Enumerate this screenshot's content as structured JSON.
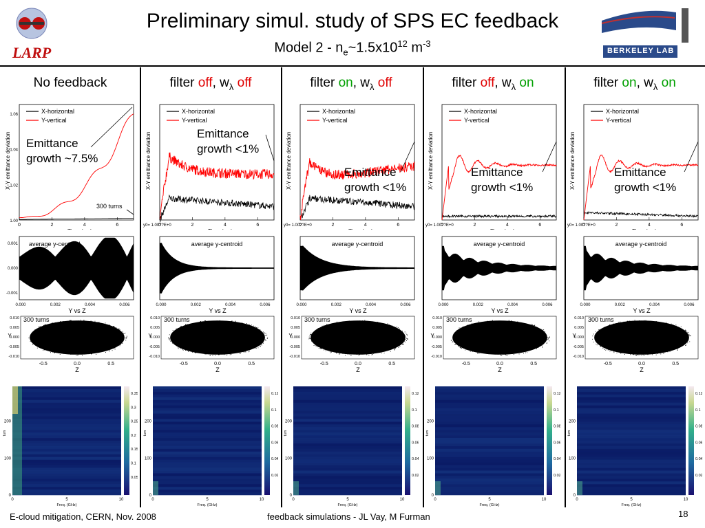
{
  "slide": {
    "title": "Preliminary simul. study of SPS EC feedback",
    "subtitle_main": "Model 2 - n",
    "subtitle_sub": "e",
    "subtitle_mid": "~1.5x10",
    "subtitle_sup": "12",
    "subtitle_unit": " m",
    "subtitle_unit_sup": "-3",
    "logo_left_text": "LARP",
    "logo_right_text": "BERKELEY LAB",
    "footer_left": "E-cloud mitigation, CERN, Nov. 2008",
    "footer_center": "feedback simulations - JL Vay, M Furman",
    "page_number": "18"
  },
  "columns": [
    {
      "head_parts": [
        {
          "t": "No feedback",
          "c": ""
        }
      ],
      "annotation_1": "Emittance",
      "annotation_2": "growth ~7.5%",
      "turns_label": "300 turns",
      "scatter_label": "300 turns"
    },
    {
      "head_parts": [
        {
          "t": "filter ",
          "c": ""
        },
        {
          "t": "off",
          "c": "off"
        },
        {
          "t": ", w",
          "c": ""
        },
        {
          "t": "λ",
          "c": "sub"
        },
        {
          "t": " off",
          "c": "off"
        }
      ],
      "annotation_1": "Emittance",
      "annotation_2": "growth <1%",
      "scatter_label": "300 turns"
    },
    {
      "head_parts": [
        {
          "t": "filter ",
          "c": ""
        },
        {
          "t": "on",
          "c": "on"
        },
        {
          "t": ", w",
          "c": ""
        },
        {
          "t": "λ",
          "c": "sub"
        },
        {
          "t": " off",
          "c": "off"
        }
      ],
      "annotation_1": "Emittance",
      "annotation_2": "growth <1%",
      "scatter_label": "300 turns"
    },
    {
      "head_parts": [
        {
          "t": "filter ",
          "c": ""
        },
        {
          "t": "off",
          "c": "off"
        },
        {
          "t": ", w",
          "c": ""
        },
        {
          "t": "λ",
          "c": "sub"
        },
        {
          "t": " on",
          "c": "on"
        }
      ],
      "annotation_1": "Emittance",
      "annotation_2": "growth <1%",
      "scatter_label": "300 turns"
    },
    {
      "head_parts": [
        {
          "t": "filter ",
          "c": ""
        },
        {
          "t": "on",
          "c": "on"
        },
        {
          "t": ", w",
          "c": ""
        },
        {
          "t": "λ",
          "c": "sub"
        },
        {
          "t": " on",
          "c": "on"
        }
      ],
      "annotation_1": "Emittance",
      "annotation_2": "growth <1%",
      "scatter_label": "300 turns"
    }
  ],
  "colors": {
    "x_horizontal": "#000000",
    "y_vertical": "#ff0000",
    "off": "#e00000",
    "on": "#00a000"
  },
  "chart_data": [
    {
      "type": "line",
      "panel": "emittance",
      "xlabel": "Time (ms)",
      "ylabel": "X-Y emittance deviation",
      "legend": [
        "X-horizontal",
        "Y-vertical"
      ],
      "x_ticks": [
        "0",
        "2",
        "4",
        "6"
      ],
      "y_ticks": [
        "1.00",
        "1.02",
        "1.04",
        "1.06"
      ],
      "xlim": [
        0,
        7
      ],
      "ylim": [
        1.0,
        1.065
      ]
    },
    {
      "type": "line",
      "panel": "centroid",
      "label": "average y-centroid",
      "x_ticks": [
        "0.000",
        "0.002",
        "0.004",
        "0.006"
      ],
      "y_ticks": [
        "-0.001",
        "0.000",
        "0.001"
      ]
    },
    {
      "type": "scatter",
      "panel": "phase",
      "title": "Y vs Z",
      "xlabel": "Z",
      "ylabel": "Y",
      "x_ticks": [
        "-0.5",
        "0.0",
        "0.5"
      ],
      "y_ticks": [
        "-0.010",
        "-0.005",
        "0.000",
        "0.005",
        "0.010"
      ]
    },
    {
      "type": "heatmap",
      "panel": "spectrum",
      "xlabel": "Freq. (GHz)",
      "ylabel": "turn",
      "x_ticks": [
        "0",
        "5",
        "10"
      ],
      "y_ticks": [
        "0",
        "100",
        "200"
      ],
      "colorbar_first": [
        "0.35",
        "0.3",
        "0.25",
        "0.2",
        "0.15",
        "0.1",
        "0.05"
      ],
      "colorbar_others": [
        "0.12",
        "0.1",
        "0.08",
        "0.06",
        "0.04",
        "0.02"
      ]
    }
  ],
  "axis_text": {
    "time_label": "Time (ms)",
    "ylab_emit": "X-Y emittance deviation",
    "leg_x": "X-horizontal",
    "leg_y": "Y-vertical",
    "centroid": "average y-centroid",
    "yvsz": "Y vs Z",
    "zlab": "Z",
    "ylab": "Y",
    "freq": "Freq. (GHz)",
    "turn": "turn",
    "y0note": "y0= 1.00??E+0"
  }
}
